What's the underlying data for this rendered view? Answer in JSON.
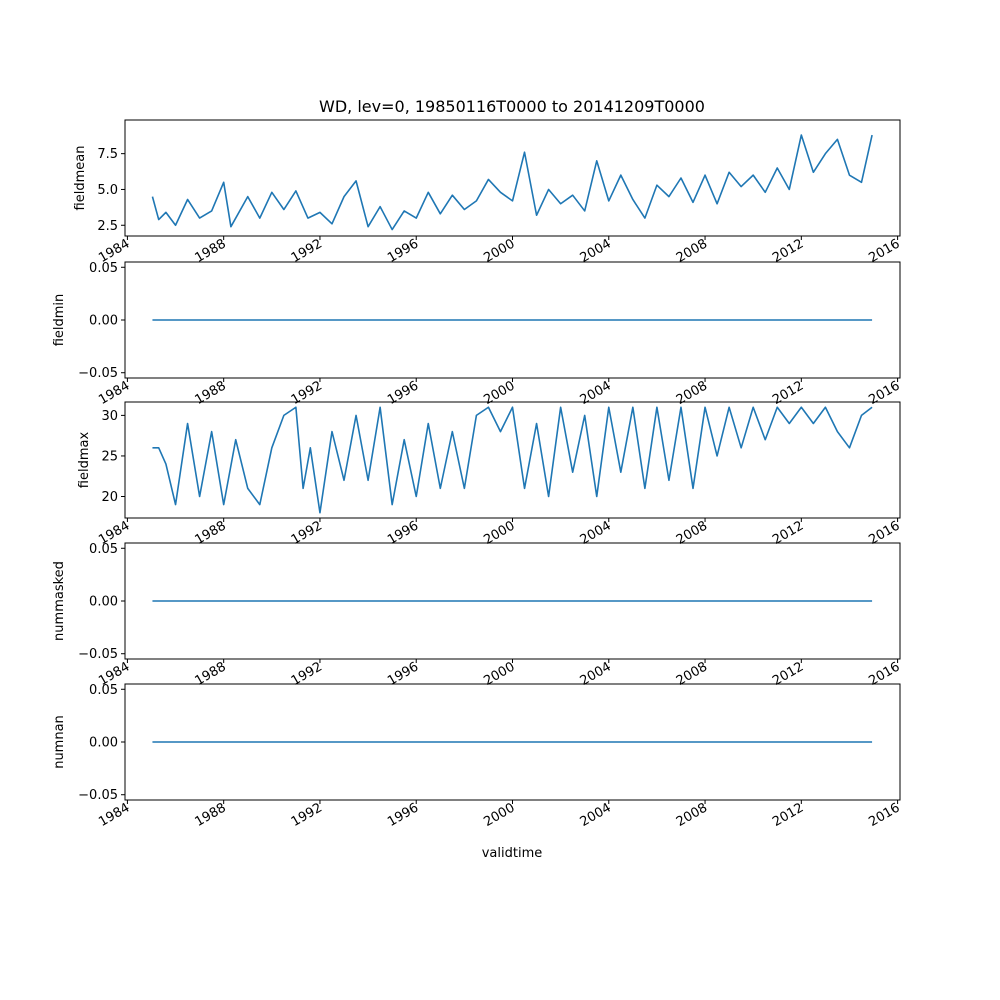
{
  "chart_data": {
    "type": "line",
    "title": "WD, lev=0, 19850116T0000 to 20141209T0000",
    "xlabel": "validtime",
    "line_color": "#1f77b4",
    "grid": false,
    "x_range": [
      1983.9,
      2016.1
    ],
    "x_ticks": [
      "1984",
      "1988",
      "1992",
      "1996",
      "2000",
      "2004",
      "2008",
      "2012",
      "2016"
    ],
    "x_start": "1985-01-16",
    "x_end": "2014-12-09",
    "panels": [
      {
        "ylabel": "fieldmean",
        "ylim": [
          1.75,
          9.85
        ],
        "yticks": [
          "2.5",
          "5.0",
          "7.5"
        ],
        "series": [
          {
            "x": 1985.04,
            "y": 4.5
          },
          {
            "x": 1985.3,
            "y": 2.9
          },
          {
            "x": 1985.6,
            "y": 3.4
          },
          {
            "x": 1986.0,
            "y": 2.5
          },
          {
            "x": 1986.5,
            "y": 4.3
          },
          {
            "x": 1987.0,
            "y": 3.0
          },
          {
            "x": 1987.5,
            "y": 3.5
          },
          {
            "x": 1988.0,
            "y": 5.5
          },
          {
            "x": 1988.3,
            "y": 2.4
          },
          {
            "x": 1989.0,
            "y": 4.5
          },
          {
            "x": 1989.5,
            "y": 3.0
          },
          {
            "x": 1990.0,
            "y": 4.8
          },
          {
            "x": 1990.5,
            "y": 3.6
          },
          {
            "x": 1991.0,
            "y": 4.9
          },
          {
            "x": 1991.5,
            "y": 3.0
          },
          {
            "x": 1992.0,
            "y": 3.4
          },
          {
            "x": 1992.5,
            "y": 2.6
          },
          {
            "x": 1993.0,
            "y": 4.5
          },
          {
            "x": 1993.5,
            "y": 5.6
          },
          {
            "x": 1994.0,
            "y": 2.4
          },
          {
            "x": 1994.5,
            "y": 3.8
          },
          {
            "x": 1995.0,
            "y": 2.2
          },
          {
            "x": 1995.5,
            "y": 3.5
          },
          {
            "x": 1996.0,
            "y": 3.0
          },
          {
            "x": 1996.5,
            "y": 4.8
          },
          {
            "x": 1997.0,
            "y": 3.3
          },
          {
            "x": 1997.5,
            "y": 4.6
          },
          {
            "x": 1998.0,
            "y": 3.6
          },
          {
            "x": 1998.5,
            "y": 4.2
          },
          {
            "x": 1999.0,
            "y": 5.7
          },
          {
            "x": 1999.5,
            "y": 4.8
          },
          {
            "x": 2000.0,
            "y": 4.2
          },
          {
            "x": 2000.5,
            "y": 7.6
          },
          {
            "x": 2001.0,
            "y": 3.2
          },
          {
            "x": 2001.5,
            "y": 5.0
          },
          {
            "x": 2002.0,
            "y": 4.0
          },
          {
            "x": 2002.5,
            "y": 4.6
          },
          {
            "x": 2003.0,
            "y": 3.5
          },
          {
            "x": 2003.5,
            "y": 7.0
          },
          {
            "x": 2004.0,
            "y": 4.2
          },
          {
            "x": 2004.5,
            "y": 6.0
          },
          {
            "x": 2005.0,
            "y": 4.3
          },
          {
            "x": 2005.5,
            "y": 3.0
          },
          {
            "x": 2006.0,
            "y": 5.3
          },
          {
            "x": 2006.5,
            "y": 4.5
          },
          {
            "x": 2007.0,
            "y": 5.8
          },
          {
            "x": 2007.5,
            "y": 4.1
          },
          {
            "x": 2008.0,
            "y": 6.0
          },
          {
            "x": 2008.5,
            "y": 4.0
          },
          {
            "x": 2009.0,
            "y": 6.2
          },
          {
            "x": 2009.5,
            "y": 5.2
          },
          {
            "x": 2010.0,
            "y": 6.0
          },
          {
            "x": 2010.5,
            "y": 4.8
          },
          {
            "x": 2011.0,
            "y": 6.5
          },
          {
            "x": 2011.5,
            "y": 5.0
          },
          {
            "x": 2012.0,
            "y": 8.8
          },
          {
            "x": 2012.5,
            "y": 6.2
          },
          {
            "x": 2013.0,
            "y": 7.5
          },
          {
            "x": 2013.5,
            "y": 8.5
          },
          {
            "x": 2014.0,
            "y": 6.0
          },
          {
            "x": 2014.5,
            "y": 5.5
          },
          {
            "x": 2014.94,
            "y": 8.8
          }
        ]
      },
      {
        "ylabel": "fieldmin",
        "ylim": [
          -0.055,
          0.055
        ],
        "yticks": [
          "−0.05",
          "0.00",
          "0.05"
        ],
        "series": [
          {
            "x": 1985.04,
            "y": 0.0
          },
          {
            "x": 2014.94,
            "y": 0.0
          }
        ]
      },
      {
        "ylabel": "fieldmax",
        "ylim": [
          17.35,
          31.65
        ],
        "yticks": [
          "20",
          "25",
          "30"
        ],
        "series": [
          {
            "x": 1985.04,
            "y": 26
          },
          {
            "x": 1985.3,
            "y": 26
          },
          {
            "x": 1985.6,
            "y": 24
          },
          {
            "x": 1986.0,
            "y": 19
          },
          {
            "x": 1986.5,
            "y": 29
          },
          {
            "x": 1987.0,
            "y": 20
          },
          {
            "x": 1987.5,
            "y": 28
          },
          {
            "x": 1988.0,
            "y": 19
          },
          {
            "x": 1988.5,
            "y": 27
          },
          {
            "x": 1989.0,
            "y": 21
          },
          {
            "x": 1989.5,
            "y": 19
          },
          {
            "x": 1990.0,
            "y": 26
          },
          {
            "x": 1990.5,
            "y": 30
          },
          {
            "x": 1991.0,
            "y": 31
          },
          {
            "x": 1991.3,
            "y": 21
          },
          {
            "x": 1991.6,
            "y": 26
          },
          {
            "x": 1992.0,
            "y": 18
          },
          {
            "x": 1992.5,
            "y": 28
          },
          {
            "x": 1993.0,
            "y": 22
          },
          {
            "x": 1993.5,
            "y": 30
          },
          {
            "x": 1994.0,
            "y": 22
          },
          {
            "x": 1994.5,
            "y": 31
          },
          {
            "x": 1995.0,
            "y": 19
          },
          {
            "x": 1995.5,
            "y": 27
          },
          {
            "x": 1996.0,
            "y": 20
          },
          {
            "x": 1996.5,
            "y": 29
          },
          {
            "x": 1997.0,
            "y": 21
          },
          {
            "x": 1997.5,
            "y": 28
          },
          {
            "x": 1998.0,
            "y": 21
          },
          {
            "x": 1998.5,
            "y": 30
          },
          {
            "x": 1999.0,
            "y": 31
          },
          {
            "x": 1999.5,
            "y": 28
          },
          {
            "x": 2000.0,
            "y": 31
          },
          {
            "x": 2000.5,
            "y": 21
          },
          {
            "x": 2001.0,
            "y": 29
          },
          {
            "x": 2001.5,
            "y": 20
          },
          {
            "x": 2002.0,
            "y": 31
          },
          {
            "x": 2002.5,
            "y": 23
          },
          {
            "x": 2003.0,
            "y": 30
          },
          {
            "x": 2003.5,
            "y": 20
          },
          {
            "x": 2004.0,
            "y": 31
          },
          {
            "x": 2004.5,
            "y": 23
          },
          {
            "x": 2005.0,
            "y": 31
          },
          {
            "x": 2005.5,
            "y": 21
          },
          {
            "x": 2006.0,
            "y": 31
          },
          {
            "x": 2006.5,
            "y": 22
          },
          {
            "x": 2007.0,
            "y": 31
          },
          {
            "x": 2007.5,
            "y": 21
          },
          {
            "x": 2008.0,
            "y": 31
          },
          {
            "x": 2008.5,
            "y": 25
          },
          {
            "x": 2009.0,
            "y": 31
          },
          {
            "x": 2009.5,
            "y": 26
          },
          {
            "x": 2010.0,
            "y": 31
          },
          {
            "x": 2010.5,
            "y": 27
          },
          {
            "x": 2011.0,
            "y": 31
          },
          {
            "x": 2011.5,
            "y": 29
          },
          {
            "x": 2012.0,
            "y": 31
          },
          {
            "x": 2012.5,
            "y": 29
          },
          {
            "x": 2013.0,
            "y": 31
          },
          {
            "x": 2013.5,
            "y": 28
          },
          {
            "x": 2014.0,
            "y": 26
          },
          {
            "x": 2014.5,
            "y": 30
          },
          {
            "x": 2014.94,
            "y": 31
          }
        ]
      },
      {
        "ylabel": "nummasked",
        "ylim": [
          -0.055,
          0.055
        ],
        "yticks": [
          "−0.05",
          "0.00",
          "0.05"
        ],
        "series": [
          {
            "x": 1985.04,
            "y": 0.0
          },
          {
            "x": 2014.94,
            "y": 0.0
          }
        ]
      },
      {
        "ylabel": "numnan",
        "ylim": [
          -0.055,
          0.055
        ],
        "yticks": [
          "−0.05",
          "0.00",
          "0.05"
        ],
        "series": [
          {
            "x": 1985.04,
            "y": 0.0
          },
          {
            "x": 2014.94,
            "y": 0.0
          }
        ]
      }
    ]
  }
}
